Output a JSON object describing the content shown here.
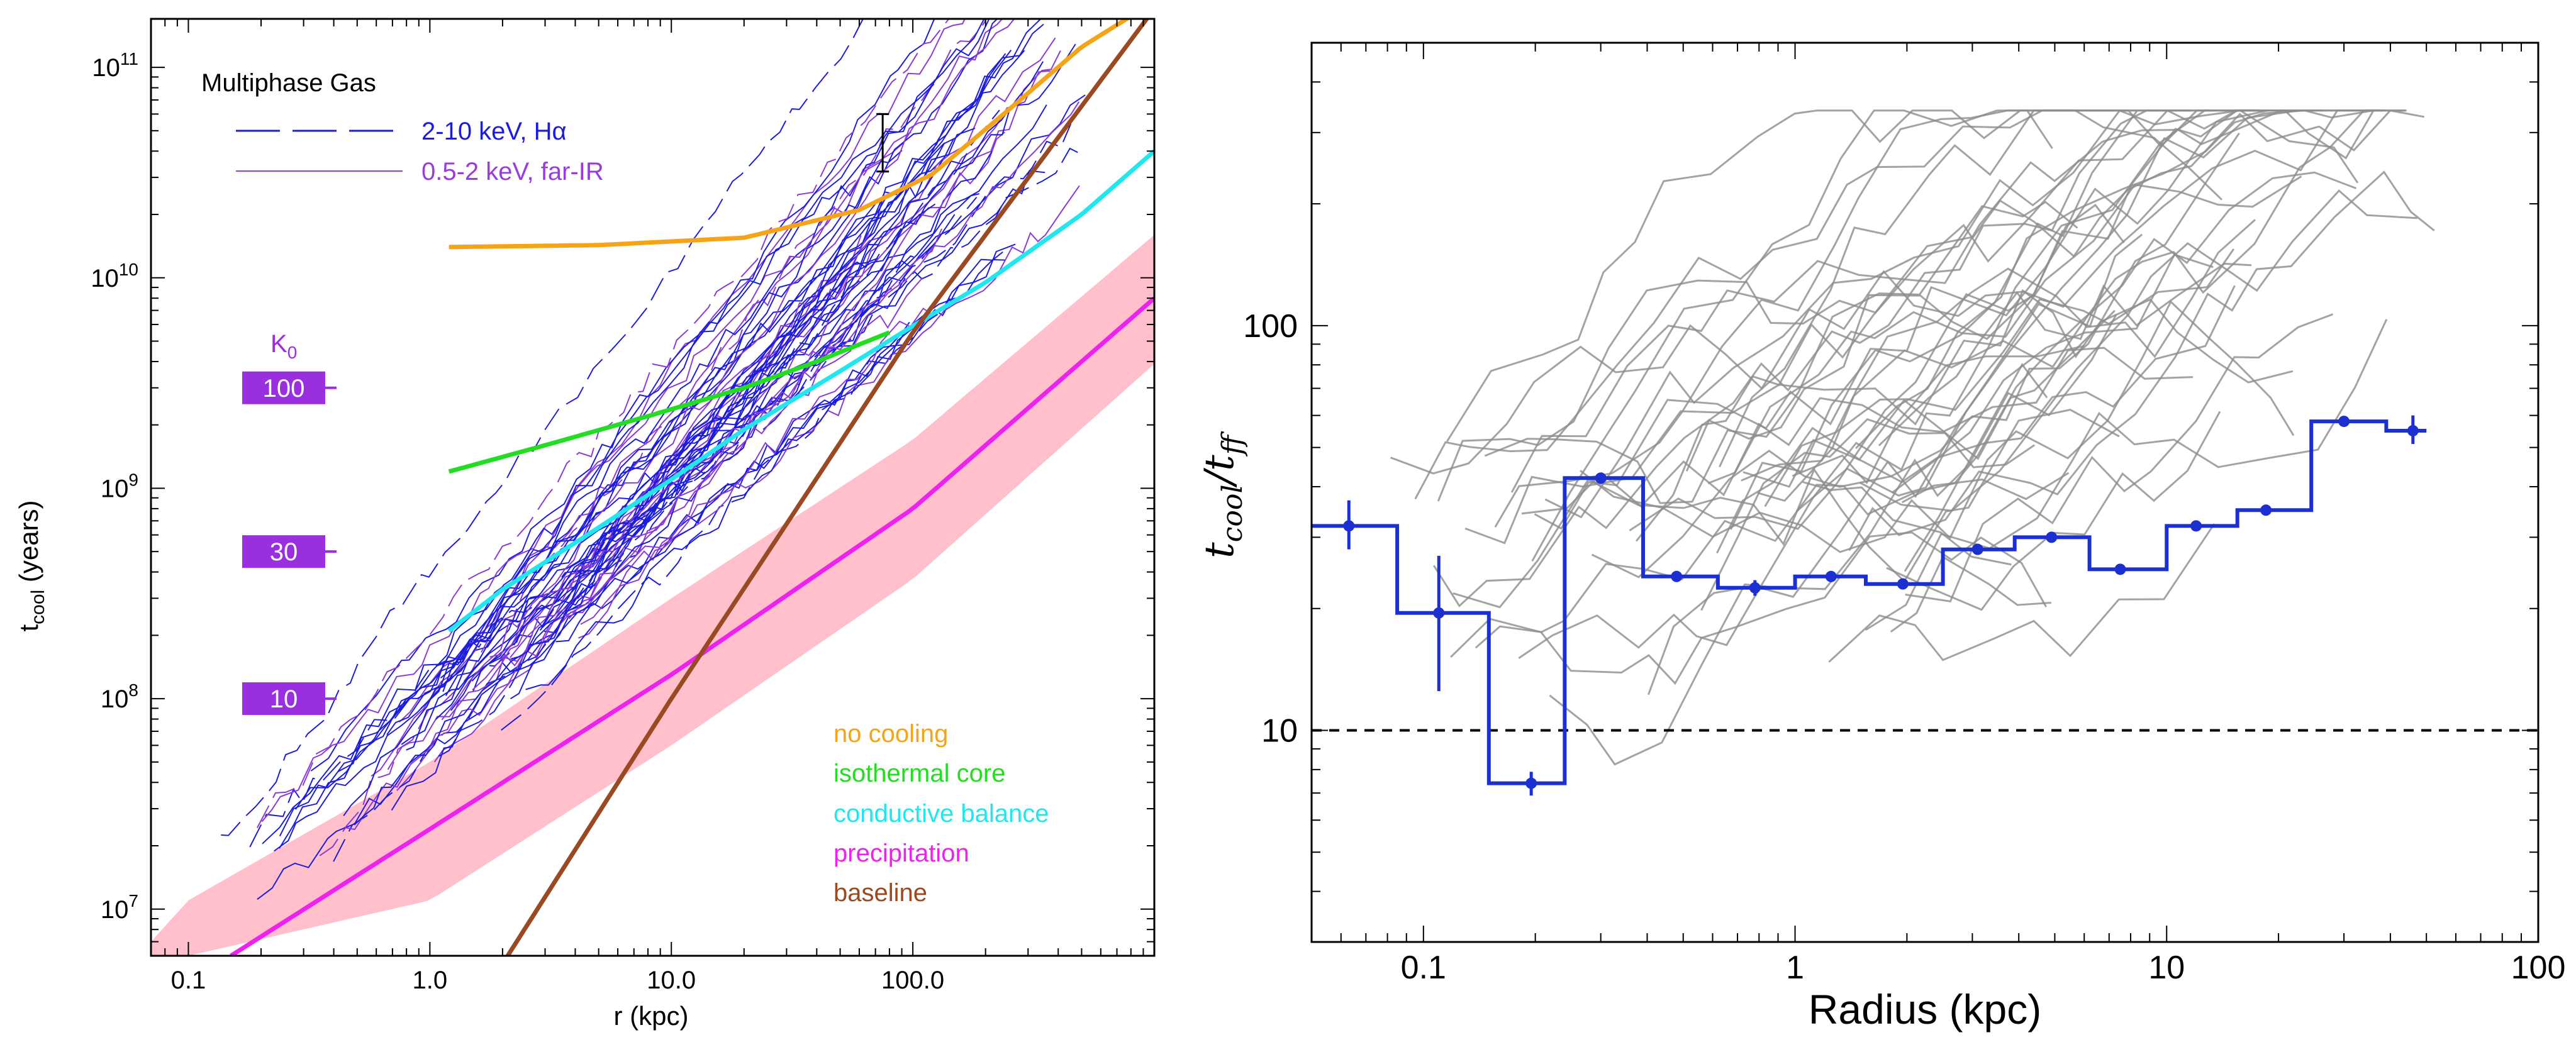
{
  "chart_data": [
    {
      "type": "line",
      "panel": "left",
      "xscale": "log",
      "yscale": "log",
      "xlim": [
        0.07,
        1000
      ],
      "ylim": [
        6000000,
        170000000000
      ],
      "xlabel": "r  (kpc)",
      "ylabel_main": "t",
      "ylabel_sub": "cool",
      "ylabel_rest": " (years)",
      "xticks": [
        {
          "v": 0.1,
          "label": "0.1"
        },
        {
          "v": 1,
          "label": "1.0"
        },
        {
          "v": 10,
          "label": "10.0"
        },
        {
          "v": 100,
          "label": "100.0"
        }
      ],
      "yticks": [
        {
          "v": 10000000,
          "base": "10",
          "exp": "7"
        },
        {
          "v": 100000000,
          "base": "10",
          "exp": "8"
        },
        {
          "v": 1000000000,
          "base": "10",
          "exp": "9"
        },
        {
          "v": 10000000000,
          "base": "10",
          "exp": "10"
        },
        {
          "v": 100000000000,
          "base": "10",
          "exp": "11"
        }
      ],
      "title_label": "Multiphase Gas",
      "legend_obs": [
        {
          "label": "2-10 keV, Hα",
          "color": "#1c1cdc",
          "dash": "long"
        },
        {
          "label": "0.5-2 keV, far-IR",
          "color": "#9a3cdc",
          "dash": "solid"
        }
      ],
      "k0_label": "K",
      "k0_sub": "0",
      "k0_color": "#9a2fe0",
      "k0_boxes": [
        {
          "label": "100",
          "t": 3000000000
        },
        {
          "label": "30",
          "t": 500000000
        },
        {
          "label": "10",
          "t": 100000000
        }
      ],
      "errorbar": {
        "r": 75,
        "low": 32000000000,
        "high": 60000000000
      },
      "models": [
        {
          "name": "no cooling",
          "color": "#f5a418",
          "r": [
            1.2,
            5,
            20,
            60,
            120,
            250,
            500,
            800
          ],
          "t": [
            14000000000,
            14300000000,
            15500000000,
            21000000000,
            31000000000,
            63000000000,
            125000000000,
            175000000000
          ]
        },
        {
          "name": "isothermal core",
          "color": "#22dd22",
          "r": [
            1.2,
            3,
            8,
            20,
            40,
            80
          ],
          "t": [
            1200000000,
            1600000000,
            2200000000,
            3000000000,
            4000000000,
            5500000000
          ]
        },
        {
          "name": "conductive balance",
          "color": "#22e6ee",
          "r": [
            1.2,
            2,
            5,
            10,
            20,
            50,
            100,
            200,
            500,
            1000
          ],
          "t": [
            210000000,
            330000000,
            650000000,
            1100000000,
            1900000000,
            3600000000,
            5900000000,
            9500000000,
            20000000000,
            40000000000
          ]
        },
        {
          "name": "precipitation",
          "color": "#ee22ee",
          "r": [
            0.15,
            1,
            10,
            100,
            1000
          ],
          "t": [
            6000000,
            24000000,
            130000000,
            800000000,
            8000000000
          ]
        },
        {
          "name": "baseline",
          "color": "#9a4a22",
          "r": [
            2.1,
            10,
            100,
            1000
          ],
          "t": [
            6000000,
            100000000,
            5500000000,
            190000000000
          ]
        }
      ],
      "band": {
        "color": "#ffc0cb",
        "r": [
          0.07,
          0.1,
          1,
          10,
          100,
          1000
        ],
        "upper": [
          7000000,
          11000000,
          50000000,
          300000000,
          1700000000,
          16000000000
        ],
        "lower": [
          6000000,
          6000000,
          11000000,
          60000000,
          370000000,
          3900000000
        ]
      }
    },
    {
      "type": "line",
      "panel": "right",
      "xscale": "log",
      "yscale": "log",
      "xlim": [
        0.05,
        100
      ],
      "ylim": [
        3,
        500
      ],
      "xlabel": "Radius (kpc)",
      "ylabel": "t",
      "ylabel_sub": "cool",
      "ylabel_mid": "/t",
      "ylabel_sub2": "ff",
      "xticks": [
        {
          "v": 0.1,
          "label": "0.1"
        },
        {
          "v": 1,
          "label": "1"
        },
        {
          "v": 10,
          "label": "10"
        },
        {
          "v": 100,
          "label": "100"
        }
      ],
      "yticks": [
        {
          "v": 10,
          "label": "10"
        },
        {
          "v": 100,
          "label": "100"
        }
      ],
      "threshold": 10,
      "steps": {
        "color": "#1c2fd0",
        "edges": [
          0.05,
          0.085,
          0.15,
          0.24,
          0.39,
          0.62,
          1.0,
          1.55,
          2.5,
          3.9,
          6.2,
          10,
          15.5,
          24.5,
          39,
          50
        ],
        "values": [
          32,
          19.5,
          7.4,
          42,
          24,
          22.5,
          24,
          23,
          28,
          30,
          25,
          32,
          35,
          58,
          55
        ]
      },
      "points": [
        {
          "x": 0.063,
          "y": 32,
          "lo": 28,
          "hi": 37
        },
        {
          "x": 0.11,
          "y": 19.5,
          "lo": 12.5,
          "hi": 27
        },
        {
          "x": 0.195,
          "y": 7.4,
          "lo": 6.9,
          "hi": 7.9
        },
        {
          "x": 0.3,
          "y": 42,
          "lo": 41,
          "hi": 43
        },
        {
          "x": 0.48,
          "y": 24,
          "lo": 23.4,
          "hi": 24.6
        },
        {
          "x": 0.78,
          "y": 22.5,
          "lo": 21.5,
          "hi": 23.5
        },
        {
          "x": 1.25,
          "y": 24,
          "lo": 23.4,
          "hi": 24.6
        },
        {
          "x": 1.95,
          "y": 23,
          "lo": 22.4,
          "hi": 23.6
        },
        {
          "x": 3.1,
          "y": 28,
          "lo": 27.3,
          "hi": 28.7
        },
        {
          "x": 4.9,
          "y": 30,
          "lo": 29.3,
          "hi": 30.7
        },
        {
          "x": 7.5,
          "y": 25,
          "lo": 24.4,
          "hi": 25.6
        },
        {
          "x": 12,
          "y": 32,
          "lo": 31.3,
          "hi": 32.7
        },
        {
          "x": 18.5,
          "y": 35,
          "lo": 34.2,
          "hi": 35.8
        },
        {
          "x": 30,
          "y": 58,
          "lo": 56.5,
          "hi": 59.5
        },
        {
          "x": 46,
          "y": 55,
          "lo": 51,
          "hi": 60
        }
      ]
    }
  ]
}
